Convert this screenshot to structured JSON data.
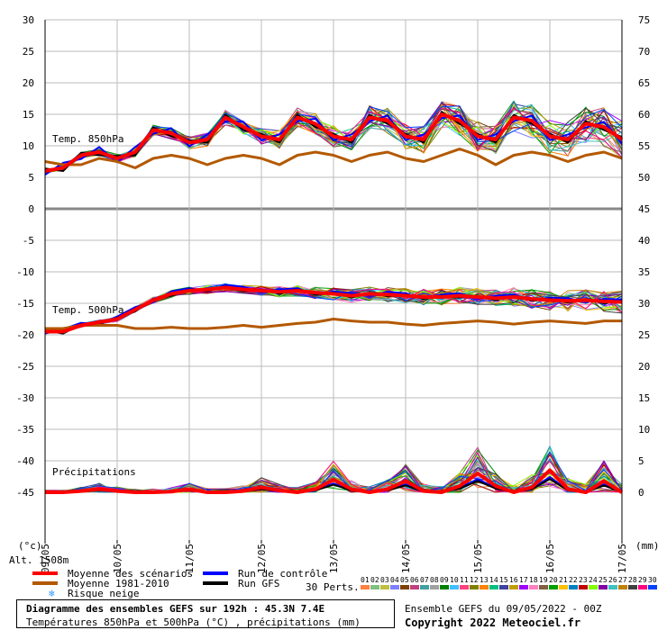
{
  "chart_data": {
    "type": "line",
    "x_dates": [
      "09/05",
      "10/05",
      "11/05",
      "12/05",
      "13/05",
      "14/05",
      "15/05",
      "16/05",
      "17/05"
    ],
    "left_ticks": [
      30,
      25,
      20,
      15,
      10,
      5,
      0,
      -5,
      -10,
      -15,
      -20,
      -25,
      -30,
      -35,
      -40,
      -45
    ],
    "right_ticks": [
      75,
      70,
      65,
      60,
      55,
      50,
      45,
      40,
      35,
      30,
      25,
      20,
      15,
      10,
      5,
      0
    ],
    "left_unit": "(°c)",
    "right_unit": "(mm)",
    "x_unit": "(°c)",
    "altitude_label": "Alt. 1508m",
    "panels": [
      {
        "label": "Temp. 850hPa"
      },
      {
        "label": "Temp. 500hPa"
      },
      {
        "label": "Précipitations"
      }
    ],
    "series": [
      {
        "name": "Moyenne des scénarios",
        "color": "#ff0000",
        "t850": [
          6,
          6.5,
          8.5,
          9,
          8,
          9,
          12.5,
          12,
          10.5,
          11,
          14.5,
          13,
          11.5,
          11,
          14.5,
          13.5,
          11.5,
          11,
          14.5,
          14,
          11.5,
          11,
          15,
          14,
          11.5,
          11,
          14.5,
          14,
          11.5,
          11,
          13.5,
          13,
          11
        ],
        "t500": [
          -19.5,
          -19.5,
          -18.5,
          -18,
          -17.5,
          -16,
          -14.5,
          -13.5,
          -13,
          -12.8,
          -12.5,
          -12.8,
          -13,
          -13.2,
          -13,
          -13.3,
          -13.5,
          -13.8,
          -13.5,
          -13.6,
          -13.8,
          -14,
          -14,
          -13.8,
          -14,
          -14.2,
          -14,
          -14.3,
          -14.5,
          -14.6,
          -14.5,
          -14.7,
          -14.8
        ],
        "precip": [
          0,
          0,
          0.2,
          0.5,
          0.2,
          0,
          0,
          0.1,
          0.5,
          0,
          0,
          0.2,
          0.8,
          0.3,
          0,
          0.5,
          2,
          0.5,
          0,
          0.5,
          1.8,
          0.2,
          0,
          1,
          3,
          1,
          0,
          0.8,
          3.5,
          0.5,
          0,
          1.8,
          0
        ]
      },
      {
        "name": "Moyenne 1981-2010",
        "color": "#b35900",
        "t850": [
          7.5,
          7,
          7,
          8,
          7.5,
          6.5,
          8,
          8.5,
          8,
          7,
          8,
          8.5,
          8,
          7,
          8.5,
          9,
          8.5,
          7.5,
          8.5,
          9,
          8,
          7.5,
          8.5,
          9.5,
          8.5,
          7,
          8.5,
          9,
          8.5,
          7.5,
          8.5,
          9,
          8
        ],
        "t500": [
          -19,
          -19,
          -18.5,
          -18.5,
          -18.5,
          -19,
          -19,
          -18.8,
          -19,
          -19,
          -18.8,
          -18.5,
          -18.8,
          -18.5,
          -18.2,
          -18,
          -17.5,
          -17.8,
          -18,
          -18,
          -18.3,
          -18.5,
          -18.2,
          -18,
          -17.8,
          -18,
          -18.3,
          -18,
          -17.8,
          -18,
          -18.2,
          -17.8,
          -17.8
        ]
      },
      {
        "name": "Run de contrôle",
        "color": "#0000ff"
      },
      {
        "name": "Run GFS",
        "color": "#000000"
      }
    ],
    "snow_risk_label": "Risque neige",
    "perturbations_label": "30 Perts.",
    "perturbation_numbers": [
      "01",
      "02",
      "03",
      "04",
      "05",
      "06",
      "07",
      "08",
      "09",
      "10",
      "11",
      "12",
      "13",
      "14",
      "15",
      "16",
      "17",
      "18",
      "19",
      "20",
      "21",
      "22",
      "23",
      "24",
      "25",
      "26",
      "27",
      "28",
      "29",
      "30"
    ],
    "perturbation_colors": [
      "#ff8040",
      "#80c080",
      "#c0c040",
      "#8080ff",
      "#804000",
      "#c04080",
      "#40a0a0",
      "#a0a0a0",
      "#008000",
      "#40c0ff",
      "#ff4080",
      "#808000",
      "#ff8000",
      "#00c080",
      "#4040a0",
      "#c0a000",
      "#a000ff",
      "#ff80c0",
      "#806040",
      "#00a000",
      "#ffc000",
      "#0080c0",
      "#c00000",
      "#80ff00",
      "#8000a0",
      "#40c0c0",
      "#c08000",
      "#404040",
      "#ff0080",
      "#0040ff"
    ]
  },
  "footer": {
    "title": "Diagramme des ensembles GEFS sur 192h : 45.3N 7.4E",
    "subtitle": "Températures 850hPa et 500hPa (°C) , précipitations (mm)",
    "run_info": "Ensemble GEFS du 09/05/2022 - 00Z",
    "copyright": "Copyright 2022 Meteociel.fr"
  }
}
